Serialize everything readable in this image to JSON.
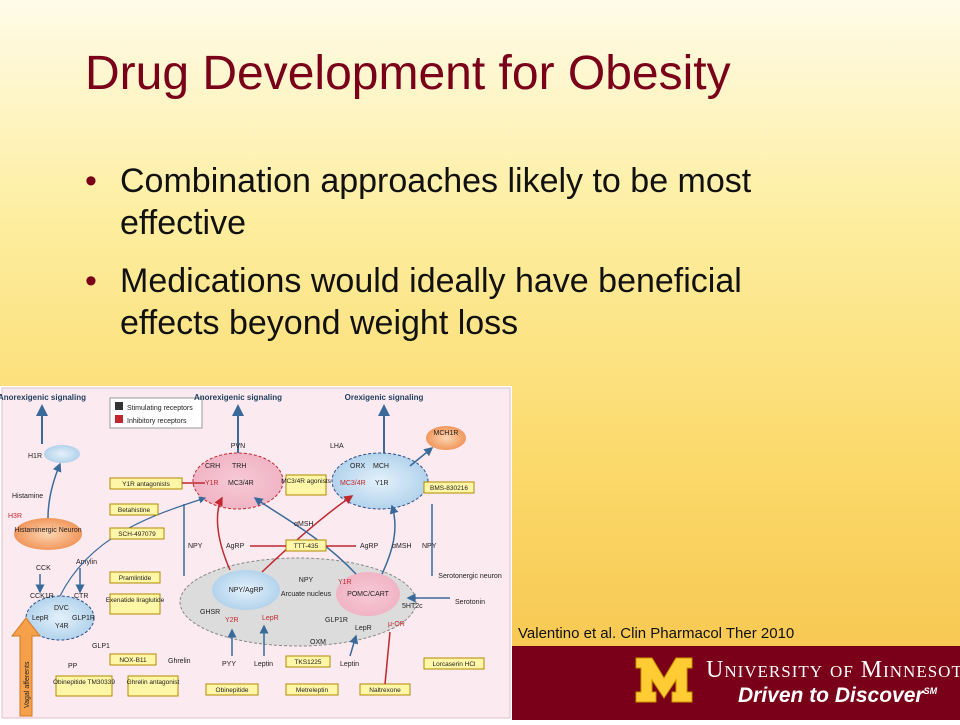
{
  "slide": {
    "title": "Drug Development for Obesity",
    "bullets": [
      "Combination approaches likely to be most effective",
      "Medications would ideally have beneficial effects beyond weight loss"
    ],
    "citation": "Valentino et al. Clin Pharmacol Ther 2010"
  },
  "footer": {
    "university": "University of Minnesota",
    "tagline": "Driven to Discover",
    "tagline_mark": "SM"
  },
  "figure": {
    "legend": {
      "stimulating": "Stimulating receptors",
      "inhibitory": "Inhibitory receptors"
    },
    "labels": {
      "anorexigenic_left": "Anorexigenic signaling",
      "anorexigenic_center": "Anorexigenic signaling",
      "orexigenic": "Orexigenic signaling",
      "pvn": "PVN",
      "lha": "LHA",
      "crh": "CRH",
      "trh": "TRH",
      "y1r_pvn": "Y1R",
      "mc34r_pvn": "MC3/4R",
      "orx": "ORX",
      "mch": "MCH",
      "mc34r_lha": "MC3/4R",
      "y1r_lha": "Y1R",
      "mch1r": "MCH1R",
      "h1r": "H1R",
      "histamine": "Histamine",
      "h3r": "H3R",
      "histaminergic_neuron": "Histaminergic Neuron",
      "npy_left": "NPY",
      "agrp_left": "AgRP",
      "amsh_top": "αMSH",
      "agrp_right": "AgRP",
      "amsh_right": "αMSH",
      "npy_right": "NPY",
      "npy_agrp": "NPY/AgRP",
      "arcuate_nucleus": "Arcuate nucleus",
      "pomc_cart": "POMC/CART",
      "npy_mid": "NPY",
      "y1r_arc": "Y1R",
      "ghsr": "GHSR",
      "y2r": "Y2R",
      "lepr_arc": "LepR",
      "glp1r_arc": "GLP1R",
      "lepr_arc2": "LepR",
      "mu_or": "μ-OR",
      "5ht2c": "5HT2c",
      "serotonergic_neuron": "Serotonergic neuron",
      "serotonin": "Serotonin",
      "oxm": "OXM",
      "pyy": "PYY",
      "leptin_left": "Leptin",
      "leptin_right": "Leptin",
      "ghrelin": "Ghrelin",
      "cck": "CCK",
      "amylin": "Amylin",
      "cck1r": "CCK1R",
      "ctr": "CTR",
      "dvc": "DVC",
      "lepr_dvc": "LepR",
      "y4r": "Y4R",
      "glp1r_dvc": "GLP1R",
      "glp1": "GLP1",
      "pp": "PP",
      "vagal": "Vagal afferents"
    },
    "drugs": [
      "Y1R antagonists",
      "MC3/4R agonists",
      "BMS-830216",
      "Betahistine",
      "SCH-497079",
      "TTT-435",
      "Pramlintide",
      "Exenatide liraglutide",
      "NOX-B11",
      "TKS1225",
      "Lorcaserin HCl",
      "Obinepitide TM30339",
      "Ghrelin antagonist",
      "Obinepitide",
      "Metreleptin",
      "Naltrexone"
    ]
  }
}
